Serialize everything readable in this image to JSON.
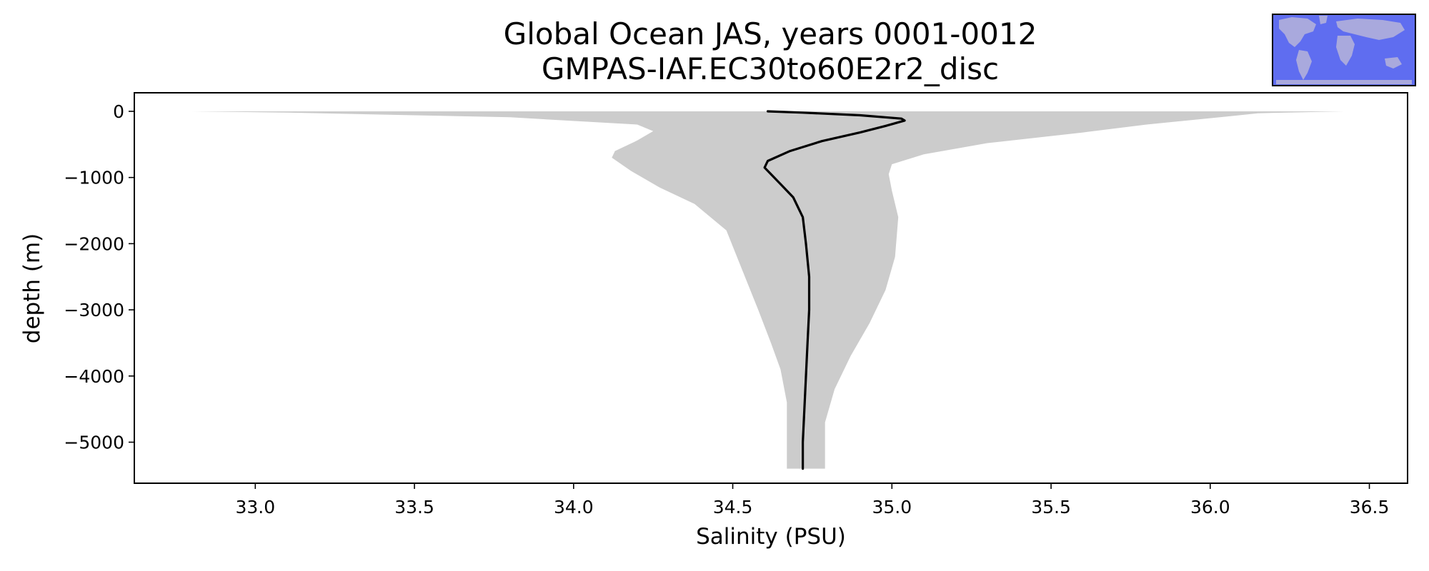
{
  "chart_data": {
    "type": "line",
    "title": [
      "Global Ocean JAS, years 0001-0012",
      "GMPAS-IAF.EC30to60E2r2_disc"
    ],
    "xlabel": "Salinity (PSU)",
    "ylabel": "depth (m)",
    "xlim": [
      32.62,
      36.62
    ],
    "ylim": [
      -5620,
      280
    ],
    "xticks": [
      33.0,
      33.5,
      34.0,
      34.5,
      35.0,
      35.5,
      36.0,
      36.5
    ],
    "xtick_labels": [
      "33.0",
      "33.5",
      "34.0",
      "34.5",
      "35.0",
      "35.5",
      "36.0",
      "36.5"
    ],
    "yticks": [
      0,
      -1000,
      -2000,
      -3000,
      -4000,
      -5000
    ],
    "ytick_labels": [
      "0",
      "−1000",
      "−2000",
      "−3000",
      "−4000",
      "−5000"
    ],
    "grid": false,
    "legend": "none",
    "series": [
      {
        "color": "#000000",
        "points": [
          [
            34.61,
            0
          ],
          [
            34.72,
            -20
          ],
          [
            34.9,
            -60
          ],
          [
            35.03,
            -110
          ],
          [
            35.04,
            -140
          ],
          [
            34.98,
            -220
          ],
          [
            34.9,
            -320
          ],
          [
            34.78,
            -450
          ],
          [
            34.68,
            -600
          ],
          [
            34.61,
            -750
          ],
          [
            34.6,
            -850
          ],
          [
            34.62,
            -950
          ],
          [
            34.65,
            -1100
          ],
          [
            34.69,
            -1300
          ],
          [
            34.72,
            -1600
          ],
          [
            34.73,
            -2000
          ],
          [
            34.74,
            -2500
          ],
          [
            34.74,
            -3000
          ],
          [
            34.735,
            -3500
          ],
          [
            34.73,
            -4000
          ],
          [
            34.725,
            -4500
          ],
          [
            34.72,
            -5000
          ],
          [
            34.72,
            -5400
          ]
        ]
      }
    ],
    "envelope": {
      "color": "#cccccc",
      "points": [
        [
          32.8,
          0
        ],
        [
          36.42,
          0
        ],
        [
          36.15,
          -30
        ],
        [
          36.05,
          -80
        ],
        [
          35.8,
          -200
        ],
        [
          35.6,
          -320
        ],
        [
          35.3,
          -480
        ],
        [
          35.1,
          -650
        ],
        [
          35.0,
          -800
        ],
        [
          34.99,
          -950
        ],
        [
          35.0,
          -1200
        ],
        [
          35.02,
          -1600
        ],
        [
          35.01,
          -2200
        ],
        [
          34.98,
          -2700
        ],
        [
          34.93,
          -3200
        ],
        [
          34.87,
          -3700
        ],
        [
          34.82,
          -4200
        ],
        [
          34.79,
          -4700
        ],
        [
          34.79,
          -5400
        ],
        [
          34.67,
          -5400
        ],
        [
          34.67,
          -4400
        ],
        [
          34.65,
          -3900
        ],
        [
          34.62,
          -3500
        ],
        [
          34.58,
          -3000
        ],
        [
          34.53,
          -2400
        ],
        [
          34.48,
          -1800
        ],
        [
          34.38,
          -1400
        ],
        [
          34.27,
          -1150
        ],
        [
          34.18,
          -900
        ],
        [
          34.12,
          -700
        ],
        [
          34.13,
          -600
        ],
        [
          34.2,
          -440
        ],
        [
          34.25,
          -300
        ],
        [
          34.2,
          -200
        ],
        [
          33.8,
          -90
        ],
        [
          33.1,
          -20
        ],
        [
          32.8,
          0
        ]
      ]
    },
    "inset_map": {
      "ocean_color": "#5f6df0",
      "land_color": "#a9a9dd",
      "border_color": "#000000"
    }
  }
}
